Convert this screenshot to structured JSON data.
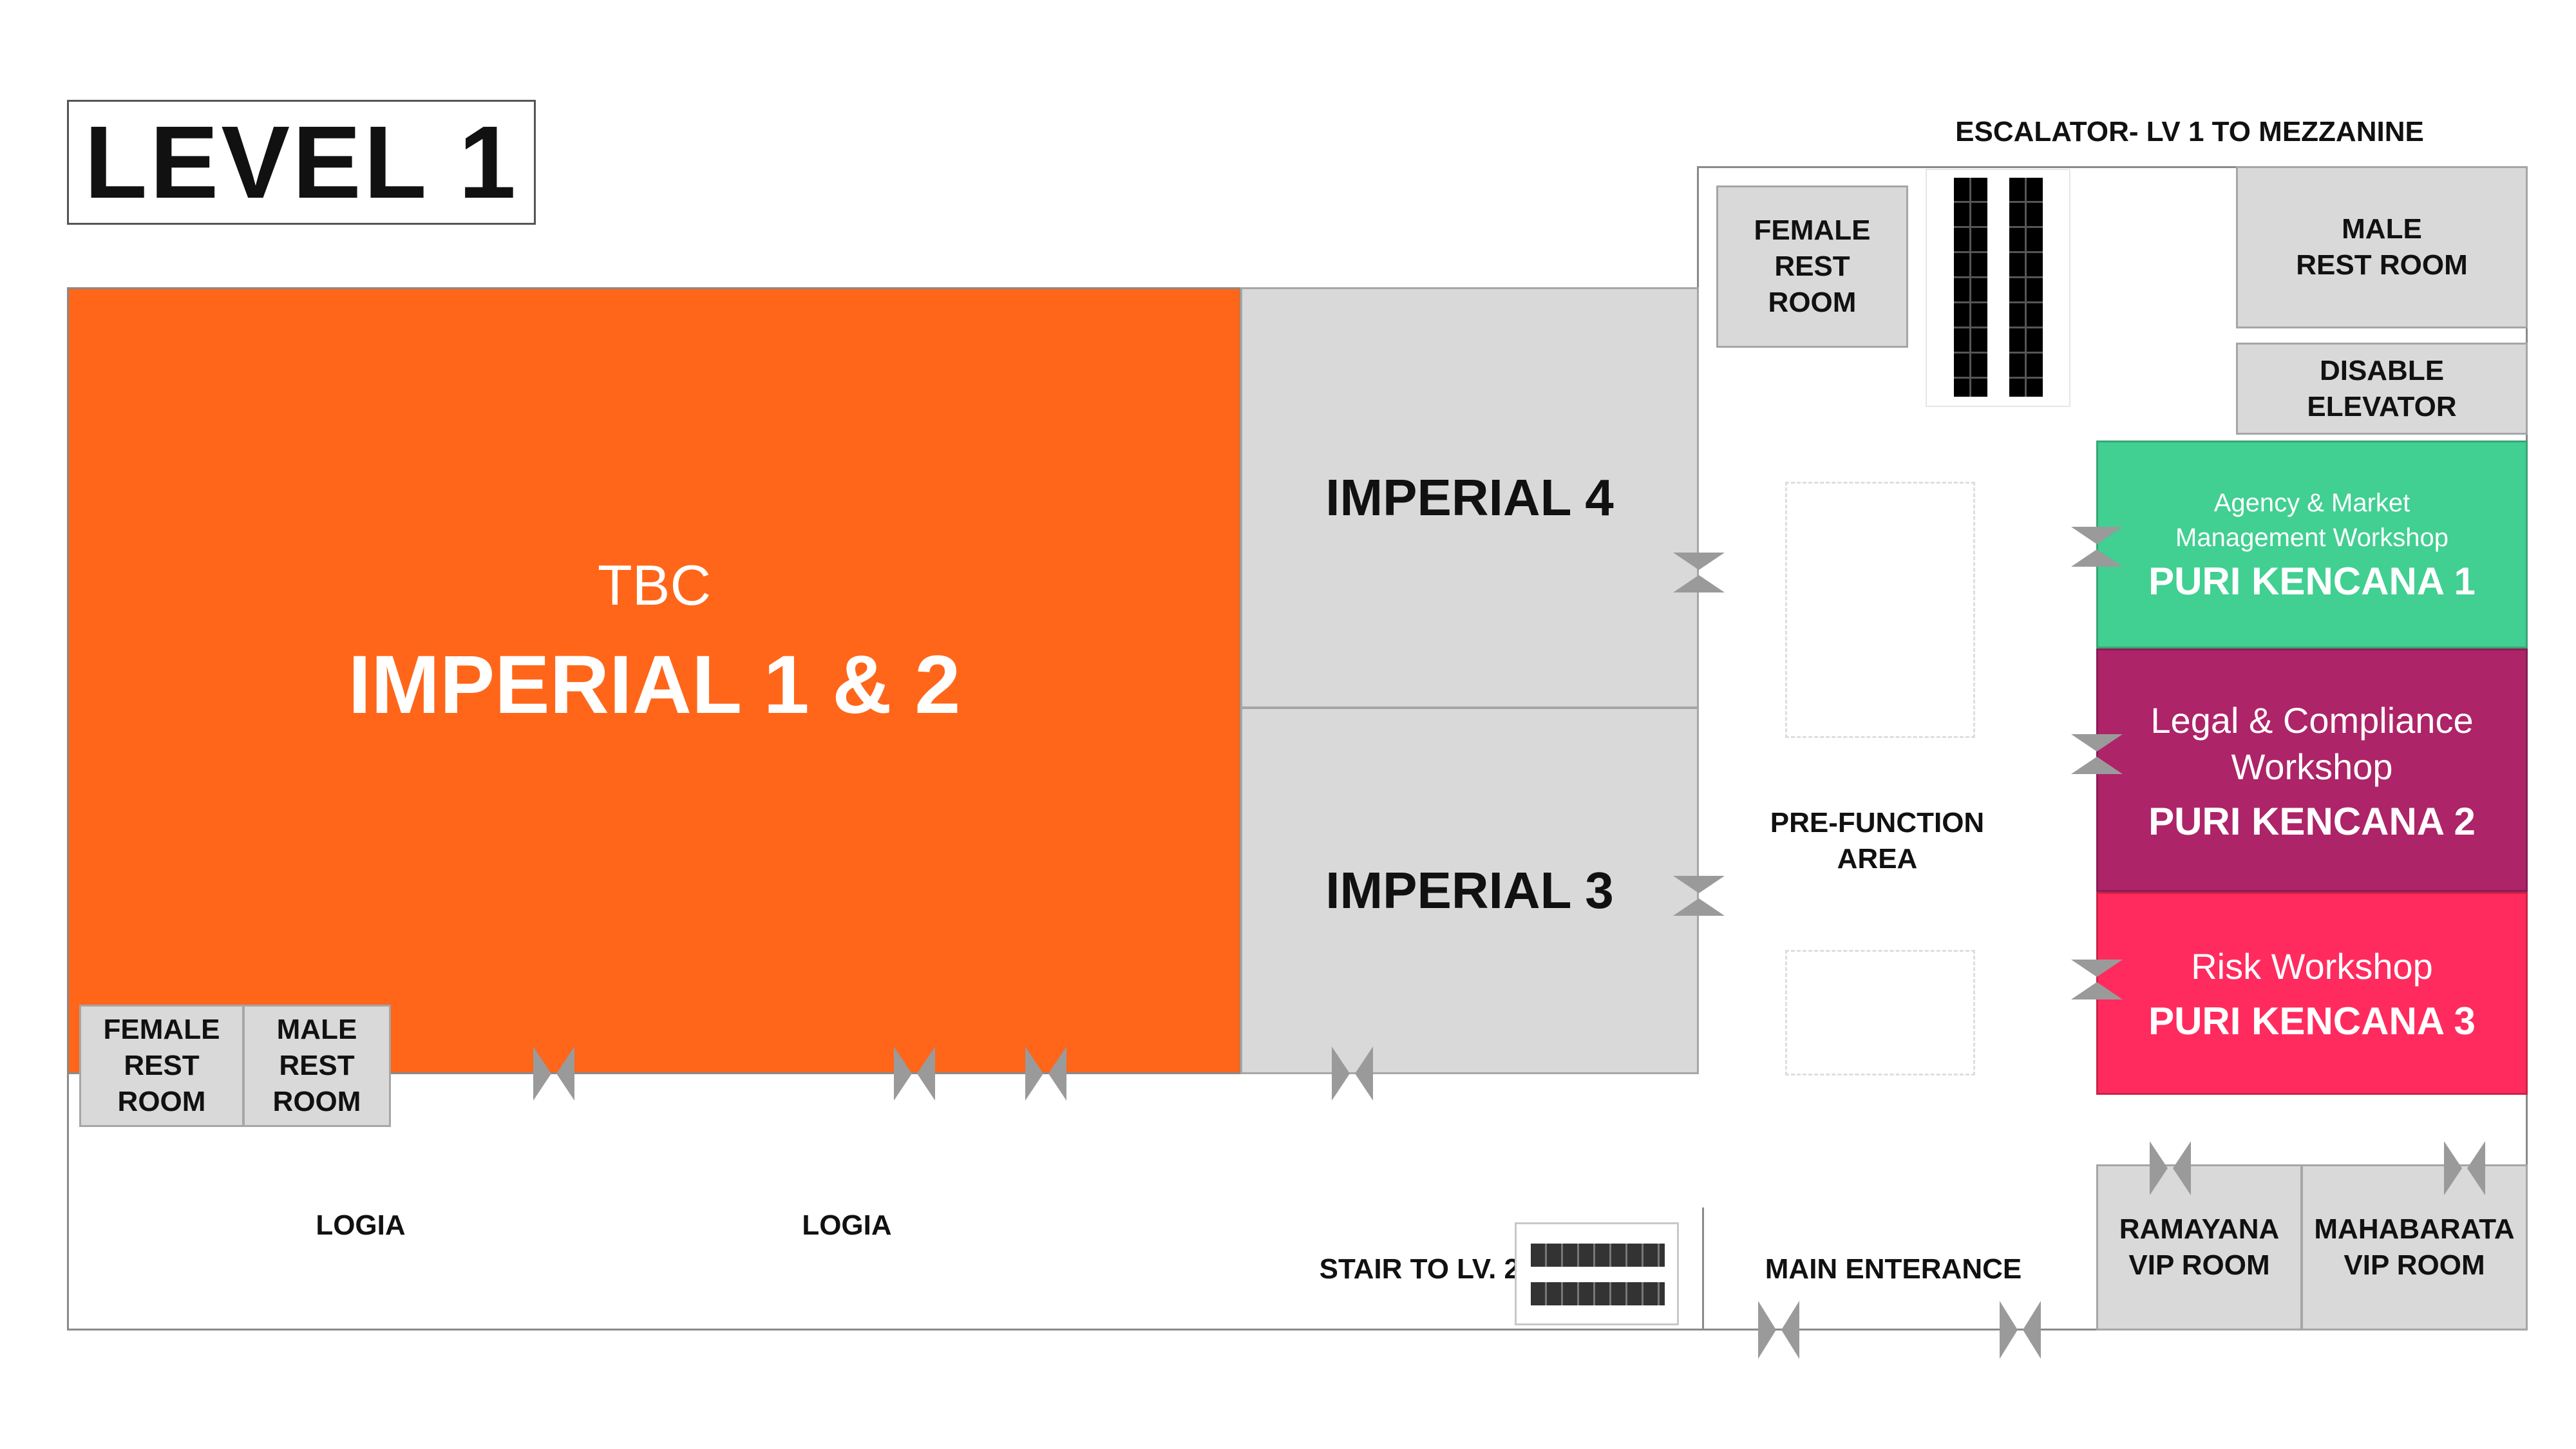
{
  "title": "LEVEL 1",
  "escalator_label": "ESCALATOR- LV 1 TO MEZZANINE",
  "rooms": {
    "imperial_1_2": {
      "status": "TBC",
      "name": "IMPERIAL 1 & 2",
      "color": "#ff661a"
    },
    "imperial_4": {
      "name": "IMPERIAL 4"
    },
    "imperial_3": {
      "name": "IMPERIAL 3"
    },
    "female_rest_top": {
      "name": "FEMALE\nREST\nROOM"
    },
    "male_rest_top": {
      "name": "MALE\nREST ROOM"
    },
    "disable_elevator": {
      "name": "DISABLE\nELEVATOR"
    },
    "puri_kencana_1": {
      "event": "Agency & Market\nManagement Workshop",
      "name": "PURI KENCANA 1",
      "color": "#41cf92"
    },
    "puri_kencana_2": {
      "event": "Legal & Compliance\nWorkshop",
      "name": "PURI KENCANA 2",
      "color": "#ad2468"
    },
    "puri_kencana_3": {
      "event": "Risk Workshop",
      "name": "PURI KENCANA 3",
      "color": "#ff2b5e"
    },
    "female_rest_bottom": {
      "name": "FEMALE\nREST\nROOM"
    },
    "male_rest_bottom": {
      "name": "MALE\nREST\nROOM"
    },
    "ramayana": {
      "name": "RAMAYANA\nVIP ROOM"
    },
    "mahabarata": {
      "name": "MAHABARATA\nVIP ROOM"
    }
  },
  "areas": {
    "pre_function": "PRE-FUNCTION\nAREA",
    "logia_left": "LOGIA",
    "logia_right": "LOGIA",
    "stair": "STAIR TO LV. 2",
    "main_entrance": "MAIN ENTERANCE"
  }
}
